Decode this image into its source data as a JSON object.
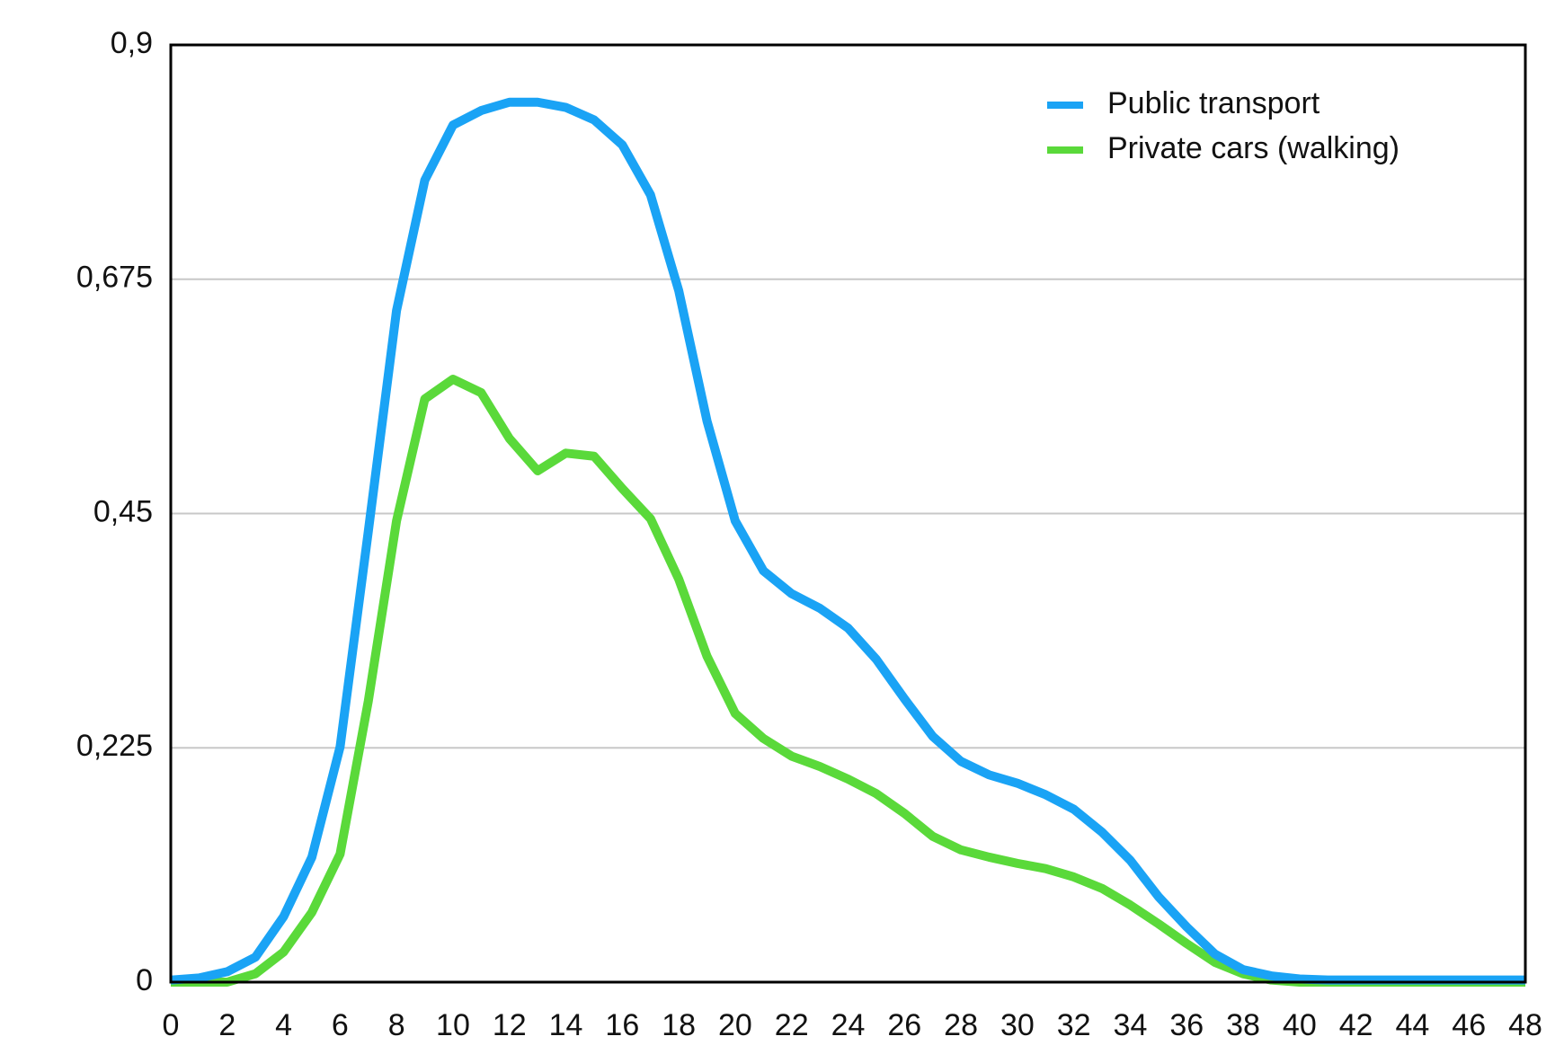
{
  "chart_data": {
    "type": "line",
    "x": [
      0,
      1,
      2,
      3,
      4,
      5,
      6,
      7,
      8,
      9,
      10,
      11,
      12,
      13,
      14,
      15,
      16,
      17,
      18,
      19,
      20,
      21,
      22,
      23,
      24,
      25,
      26,
      27,
      28,
      29,
      30,
      31,
      32,
      33,
      34,
      35,
      36,
      37,
      38,
      39,
      40,
      41,
      42,
      43,
      44,
      45,
      46,
      47,
      48
    ],
    "series": [
      {
        "name": "Public transport",
        "color": "#1aa3f5",
        "values": [
          0.002,
          0.004,
          0.01,
          0.024,
          0.063,
          0.12,
          0.226,
          0.433,
          0.645,
          0.77,
          0.823,
          0.837,
          0.845,
          0.845,
          0.84,
          0.828,
          0.804,
          0.756,
          0.664,
          0.539,
          0.443,
          0.395,
          0.373,
          0.359,
          0.34,
          0.31,
          0.272,
          0.236,
          0.212,
          0.199,
          0.191,
          0.18,
          0.166,
          0.144,
          0.117,
          0.082,
          0.053,
          0.027,
          0.012,
          0.006,
          0.003,
          0.002,
          0.002,
          0.002,
          0.002,
          0.002,
          0.002,
          0.002,
          0.002
        ]
      },
      {
        "name": "Private cars (walking)",
        "color": "#5ad93a",
        "values": [
          0,
          0,
          0,
          0.008,
          0.029,
          0.067,
          0.123,
          0.27,
          0.443,
          0.56,
          0.579,
          0.566,
          0.522,
          0.491,
          0.508,
          0.505,
          0.474,
          0.445,
          0.387,
          0.313,
          0.258,
          0.234,
          0.217,
          0.207,
          0.195,
          0.181,
          0.162,
          0.14,
          0.127,
          0.12,
          0.114,
          0.109,
          0.101,
          0.09,
          0.074,
          0.056,
          0.037,
          0.019,
          0.008,
          0.002,
          0,
          0,
          0,
          0,
          0,
          0,
          0,
          0,
          0
        ]
      }
    ],
    "xlim": [
      0,
      48
    ],
    "xticks": [
      0,
      2,
      4,
      6,
      8,
      10,
      12,
      14,
      16,
      18,
      20,
      22,
      24,
      26,
      28,
      30,
      32,
      34,
      36,
      38,
      40,
      42,
      44,
      46,
      48
    ],
    "ylim": [
      0,
      0.9
    ],
    "yticks": [
      0,
      {
        "value": 0.225,
        "label": "0,225"
      },
      {
        "value": 0.45,
        "label": "0,45"
      },
      {
        "value": 0.675,
        "label": "0,675"
      },
      {
        "value": 0.9,
        "label": "0,9"
      }
    ],
    "grid": true,
    "legend": "top-right"
  }
}
